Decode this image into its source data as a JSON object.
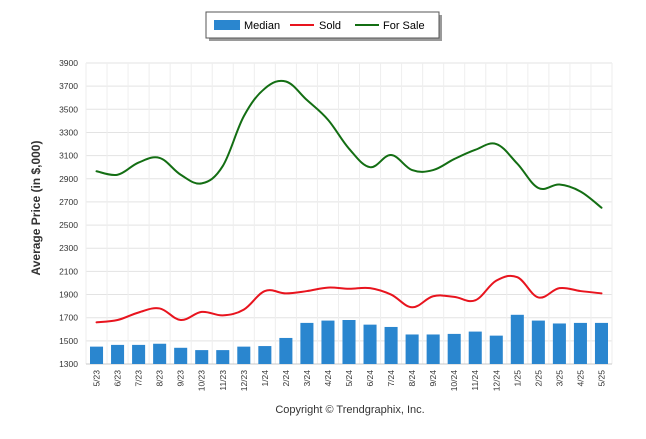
{
  "chart_data": {
    "type": "bar+line",
    "categories": [
      "5/23",
      "6/23",
      "7/23",
      "8/23",
      "9/23",
      "10/23",
      "11/23",
      "12/23",
      "1/24",
      "2/24",
      "3/24",
      "4/24",
      "5/24",
      "6/24",
      "7/24",
      "8/24",
      "9/24",
      "10/24",
      "11/24",
      "12/24",
      "1/25",
      "2/25",
      "3/25",
      "4/25",
      "5/25"
    ],
    "series": [
      {
        "name": "Median",
        "kind": "bar",
        "color": "#2a86cf",
        "values": [
          1450,
          1465,
          1465,
          1475,
          1440,
          1420,
          1420,
          1450,
          1455,
          1525,
          1655,
          1675,
          1680,
          1640,
          1620,
          1555,
          1555,
          1560,
          1580,
          1545,
          1725,
          1675,
          1650,
          1655,
          1655
        ]
      },
      {
        "name": "Sold",
        "kind": "line",
        "color": "#e8141e",
        "values": [
          1660,
          1680,
          1745,
          1780,
          1680,
          1750,
          1720,
          1770,
          1930,
          1910,
          1930,
          1960,
          1950,
          1955,
          1900,
          1790,
          1885,
          1880,
          1850,
          2020,
          2050,
          1875,
          1955,
          1930,
          1910
        ]
      },
      {
        "name": "For Sale",
        "kind": "line",
        "color": "#136e13",
        "values": [
          2965,
          2935,
          3040,
          3080,
          2935,
          2860,
          3010,
          3440,
          3680,
          3740,
          3580,
          3410,
          3160,
          3000,
          3105,
          2975,
          2975,
          3070,
          3150,
          3200,
          3030,
          2820,
          2850,
          2790,
          2650
        ]
      }
    ],
    "ylabel": "Average Price (in $,000)",
    "ylim": [
      1300,
      3900
    ],
    "yticks": [
      1300,
      1500,
      1700,
      1900,
      2100,
      2300,
      2500,
      2700,
      2900,
      3100,
      3300,
      3500,
      3700,
      3900
    ],
    "grid": true,
    "legend_position": "top-center",
    "footer": "Copyright © Trendgraphix, Inc."
  }
}
